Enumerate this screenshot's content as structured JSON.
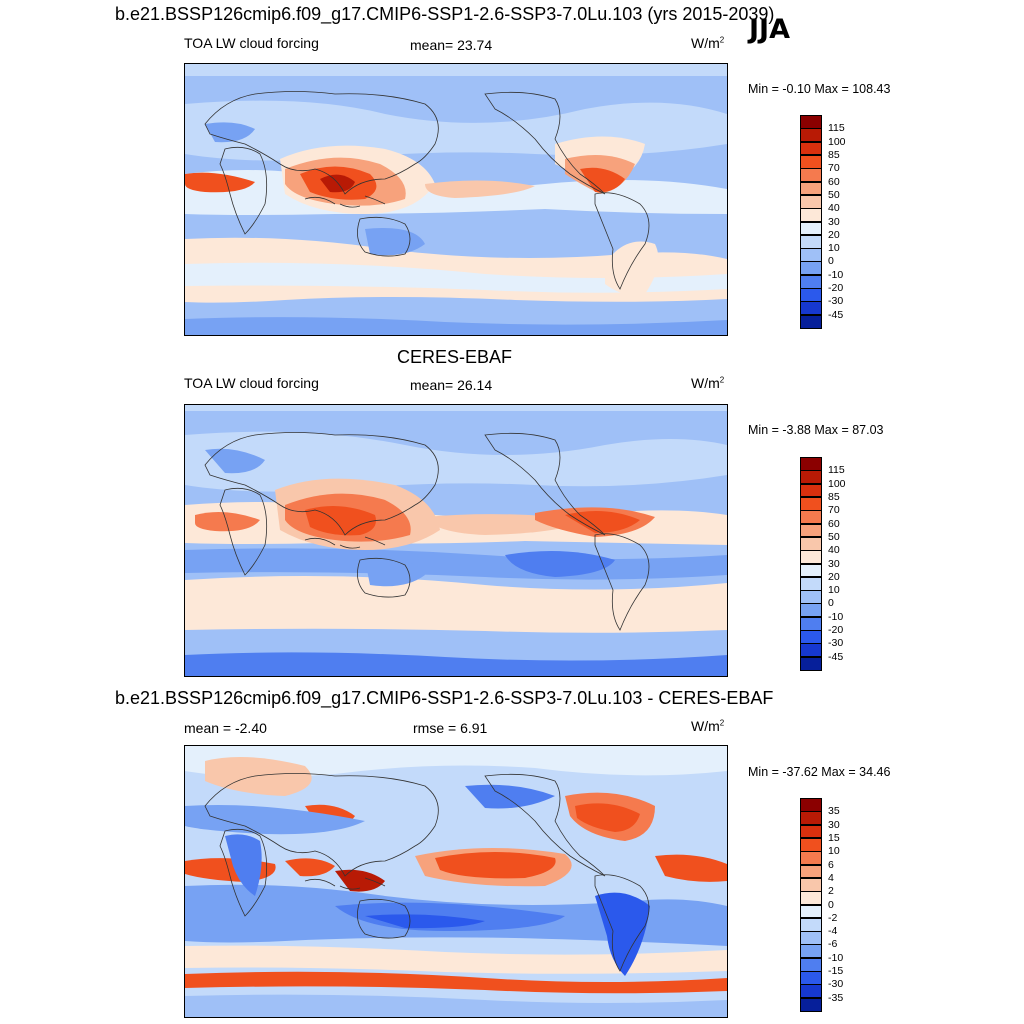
{
  "header": {
    "title": "b.e21.BSSP126cmip6.f09_g17.CMIP6-SSP1-2.6-SSP3-7.0Lu.103 (yrs 2015-2039)",
    "season": "JJA"
  },
  "panels": [
    {
      "id": "model",
      "left_label": "TOA LW cloud forcing",
      "center_label": "mean=  23.74",
      "units": "W/m",
      "units_sup": "2",
      "minmax": "Min =  -0.10 Max = 108.43"
    },
    {
      "id": "obs",
      "title": "CERES-EBAF",
      "left_label": "TOA LW cloud forcing",
      "center_label": "mean=  26.14",
      "units": "W/m",
      "units_sup": "2",
      "minmax": "Min =  -3.88 Max =  87.03"
    },
    {
      "id": "diff",
      "title": "b.e21.BSSP126cmip6.f09_g17.CMIP6-SSP1-2.6-SSP3-7.0Lu.103 - CERES-EBAF",
      "left_label": "mean =  -2.40",
      "center_label": "rmse =   6.91",
      "units": "W/m",
      "units_sup": "2",
      "minmax": "Min = -37.62 Max =  34.46"
    }
  ],
  "colorbars": {
    "abs": {
      "labels": [
        "115",
        "100",
        "85",
        "70",
        "60",
        "50",
        "40",
        "30",
        "20",
        "10",
        "0",
        "-10",
        "-20",
        "-30",
        "-45"
      ],
      "colors": [
        "#8b0000",
        "#b81a05",
        "#d8300e",
        "#f0501e",
        "#f57a4e",
        "#f7a27c",
        "#f9c7ab",
        "#fde8d8",
        "#e4f0fc",
        "#c3dafa",
        "#9fc0f7",
        "#77a2f3",
        "#4f7ef0",
        "#2b59ec",
        "#1638d0",
        "#061f9a"
      ]
    },
    "diff": {
      "labels": [
        "35",
        "30",
        "15",
        "10",
        "6",
        "4",
        "2",
        "0",
        "-2",
        "-4",
        "-6",
        "-10",
        "-15",
        "-30",
        "-35"
      ],
      "colors": [
        "#8b0000",
        "#b81a05",
        "#d8300e",
        "#f0501e",
        "#f57a4e",
        "#f7a27c",
        "#f9c7ab",
        "#fde8d8",
        "#e4f0fc",
        "#c3dafa",
        "#9fc0f7",
        "#77a2f3",
        "#4f7ef0",
        "#2b59ec",
        "#1638d0",
        "#061f9a"
      ]
    }
  }
}
